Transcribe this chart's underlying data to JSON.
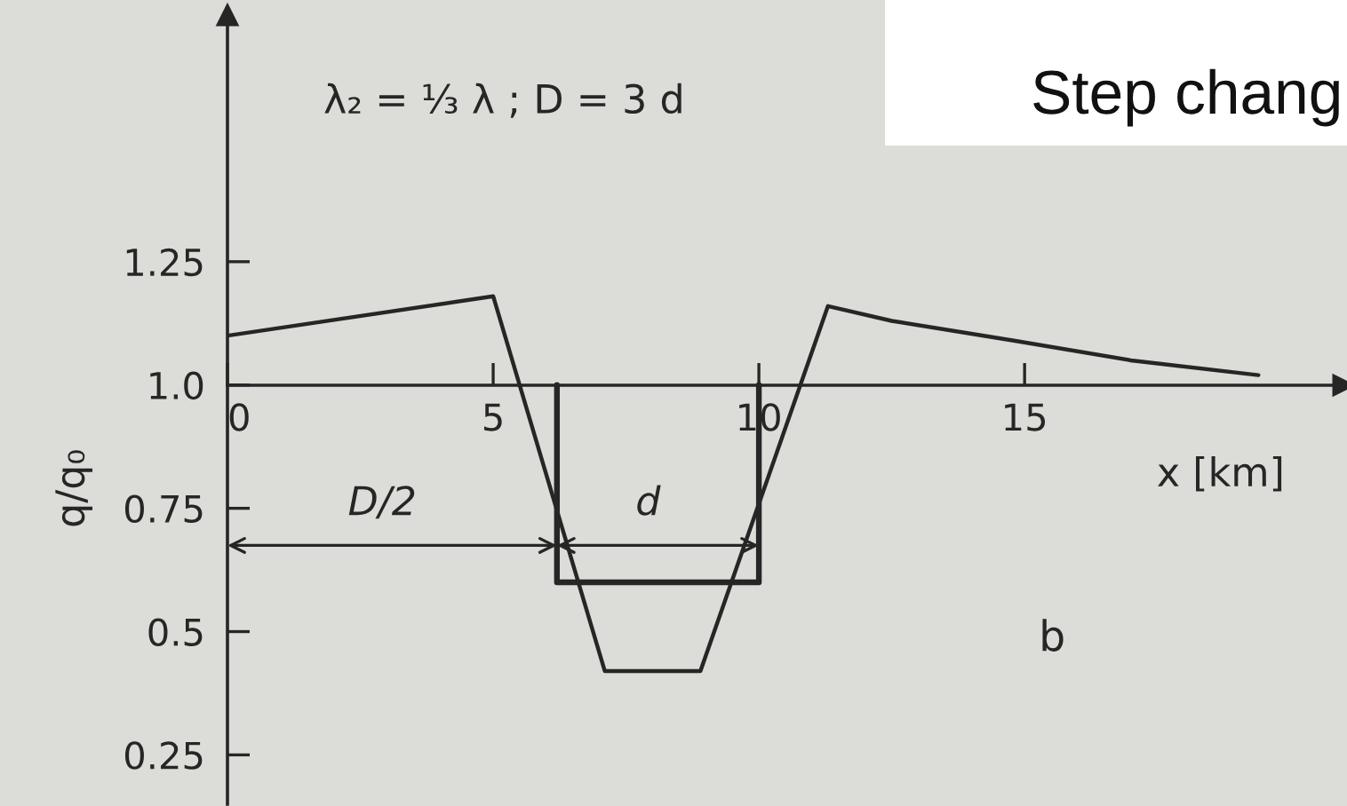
{
  "chart_data": {
    "type": "line",
    "title": "λ₂ = ⅓ λ ; D = 3 d",
    "xlabel": "x [km]",
    "ylabel": "q/q₀",
    "series": [
      {
        "color": "#262626",
        "x": [
          0,
          5,
          7.1,
          8.9,
          11.3,
          12.5,
          14.8,
          17.0,
          19.4
        ],
        "values": [
          1.1,
          1.18,
          0.42,
          0.42,
          1.16,
          1.13,
          1.09,
          1.05,
          1.02
        ]
      },
      {
        "color": "#262626",
        "x": [
          6.2,
          6.2,
          10,
          10
        ],
        "values": [
          1.0,
          0.6,
          0.6,
          1.0
        ]
      }
    ],
    "xlim": [
      0,
      21
    ],
    "xticks": [
      0,
      5,
      10,
      15
    ],
    "ylim": [
      0.15,
      1.75
    ],
    "yticks": [
      0.25,
      0.5,
      0.75,
      {
        "value": 1,
        "label": "1.0"
      },
      1.25
    ],
    "annotations": [
      "D/2",
      "d",
      "b",
      "Step chang"
    ],
    "line_style": "solid"
  }
}
